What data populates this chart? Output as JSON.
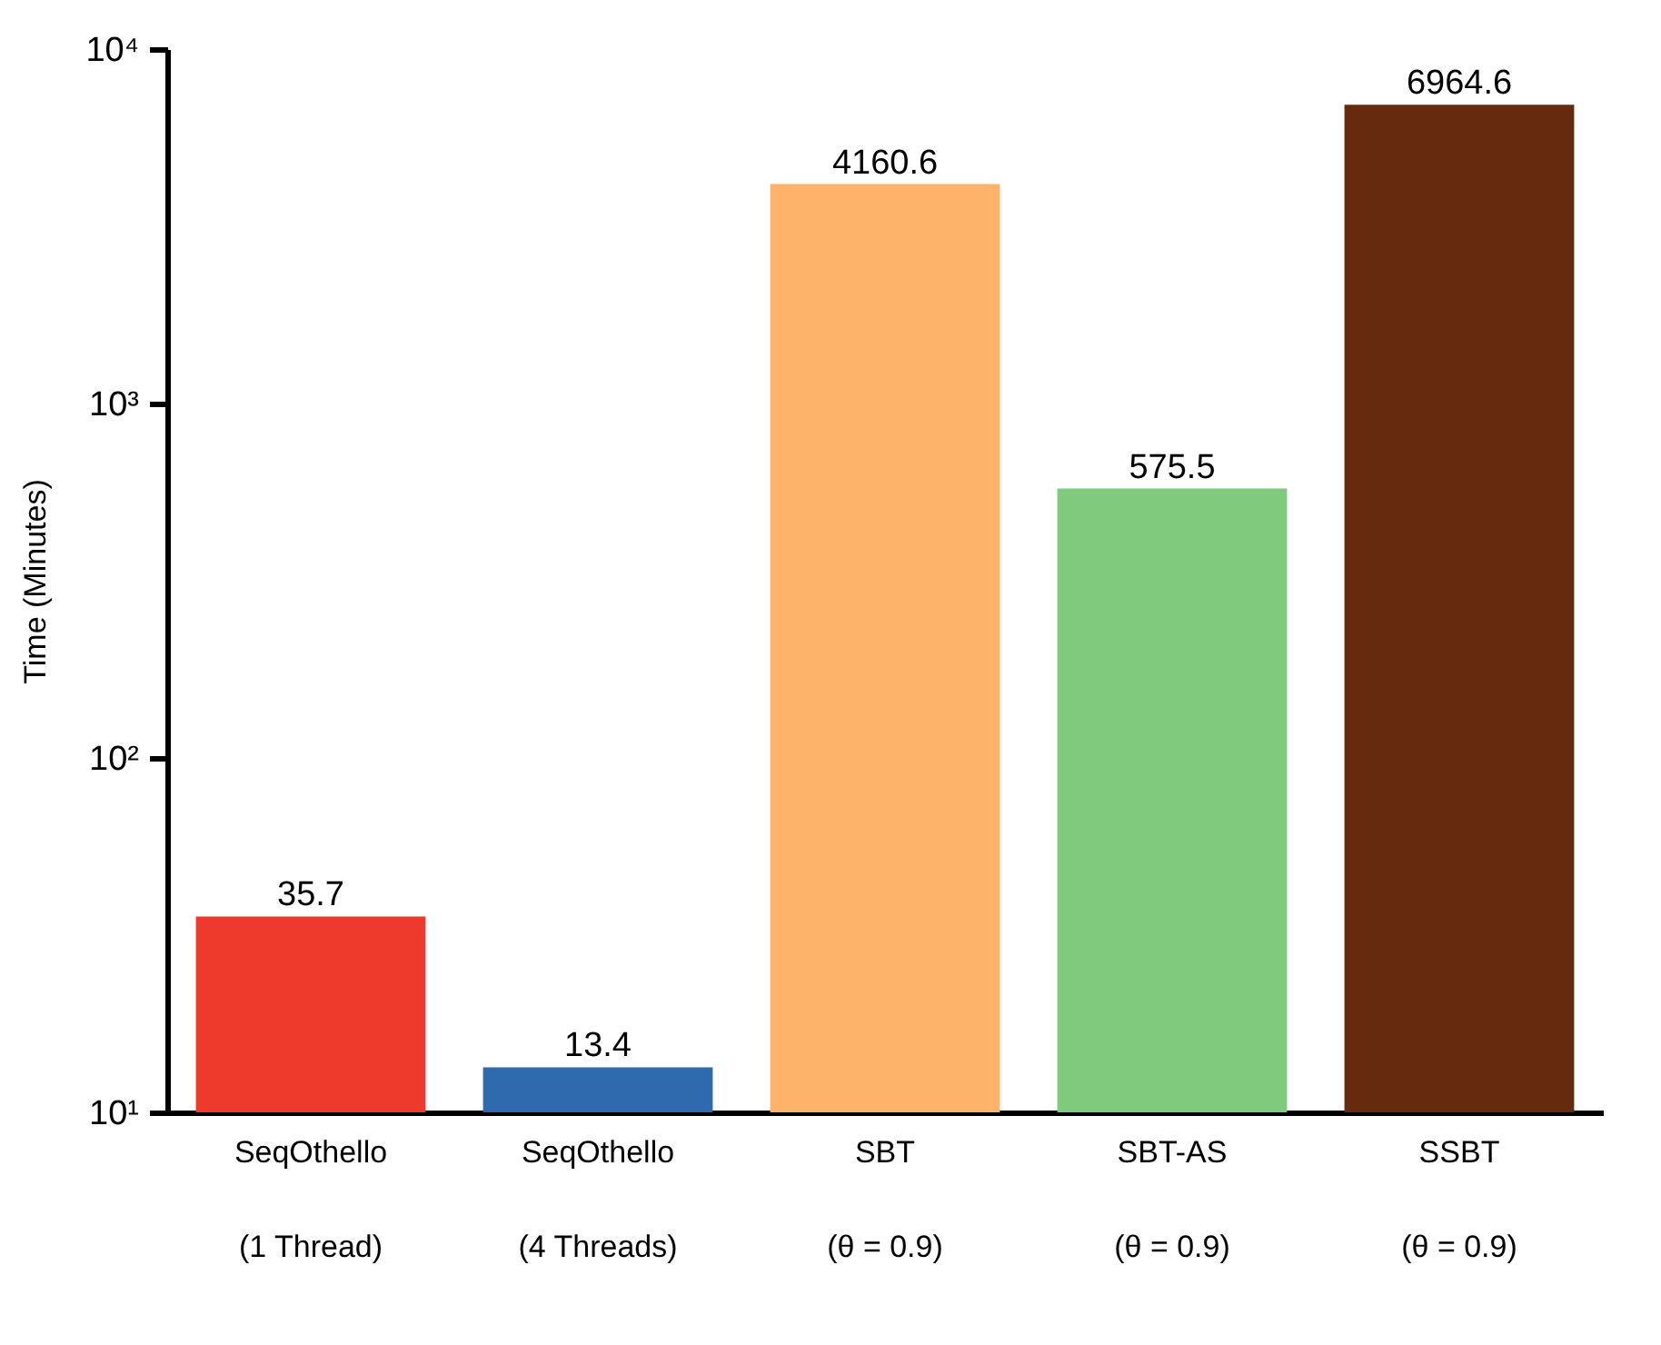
{
  "chart_data": {
    "type": "bar",
    "ylabel": "Time (Minutes)",
    "categories": [
      "SeqOthello\n(1 Thread)",
      "SeqOthello\n(4 Threads)",
      "SBT\n(θ = 0.9)",
      "SBT-AS\n(θ = 0.9)",
      "SSBT\n(θ = 0.9)"
    ],
    "values": [
      35.7,
      13.4,
      4160.6,
      575.5,
      6964.6
    ],
    "colors": [
      "#ee3a2c",
      "#2e6aad",
      "#fdb36a",
      "#7fcb7e",
      "#662a0e"
    ],
    "log": "y",
    "ylim": [
      10,
      10000
    ],
    "yticks": [
      {
        "value": 10,
        "label": "10¹"
      },
      {
        "value": 100,
        "label": "10²"
      },
      {
        "value": 1000,
        "label": "10³"
      },
      {
        "value": 10000,
        "label": "10⁴"
      }
    ],
    "data_labels": true,
    "grid": false
  }
}
